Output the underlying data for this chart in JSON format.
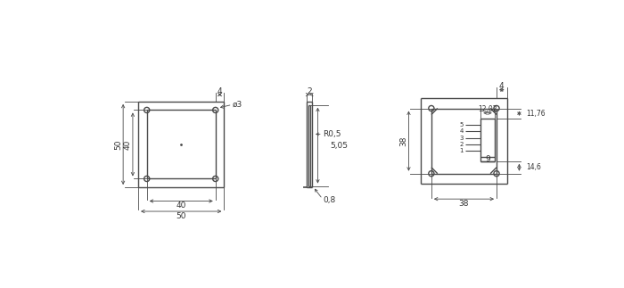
{
  "bg_color": "#ffffff",
  "line_color": "#4a4a4a",
  "dim_color": "#4a4a4a",
  "text_color": "#333333",
  "lw": 1.0,
  "dim_lw": 0.6,
  "font_size": 6.5
}
